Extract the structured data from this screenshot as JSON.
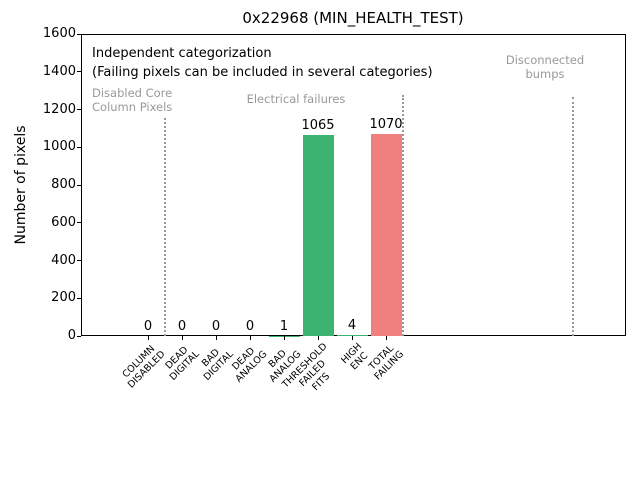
{
  "figure": {
    "background": "#ffffff"
  },
  "chart_data": {
    "type": "bar",
    "title": "0x22968 (MIN_HEALTH_TEST)",
    "xlabel": "",
    "ylabel": "Number of pixels",
    "ylim": [
      0,
      1600
    ],
    "yticks": [
      0,
      200,
      400,
      600,
      800,
      1000,
      1200,
      1400,
      1600
    ],
    "grid": false,
    "legend": false,
    "categories": [
      "COLUMN DISABLED",
      "DEAD DIGITAL",
      "BAD DIGITAL",
      "DEAD ANALOG",
      "BAD ANALOG",
      "THRESHOLD FAILED FITS",
      "HIGH ENC",
      "TOTAL FAILING"
    ],
    "category_lines": [
      [
        "COLUMN",
        "DISABLED"
      ],
      [
        "DEAD",
        "DIGITAL"
      ],
      [
        "BAD",
        "DIGITAL"
      ],
      [
        "DEAD",
        "ANALOG"
      ],
      [
        "BAD",
        "ANALOG"
      ],
      [
        "THRESHOLD",
        "FAILED",
        "FITS"
      ],
      [
        "HIGH",
        "ENC"
      ],
      [
        "TOTAL",
        "FAILING"
      ]
    ],
    "values": [
      0,
      0,
      0,
      0,
      1,
      1065,
      4,
      1070
    ],
    "value_labels": [
      "0",
      "0",
      "0",
      "0",
      "1",
      "1065",
      "4",
      "1070"
    ],
    "bar_colors": [
      "#3cb371",
      "#3cb371",
      "#3cb371",
      "#3cb371",
      "#3cb371",
      "#3cb371",
      "#3cb371",
      "#f08080"
    ],
    "annotations": {
      "note_line1": "Independent categorization",
      "note_line2": "(Failing pixels can be included in several categories)",
      "note_color": "#000000",
      "group_label_color": "#999999",
      "separator_line_color": "#999999",
      "group_labels": [
        {
          "lines": [
            "Disabled Core",
            "Column Pixels"
          ]
        },
        {
          "lines": [
            "Electrical failures"
          ]
        },
        {
          "lines": [
            "Disconnected",
            "bumps"
          ]
        }
      ]
    }
  }
}
